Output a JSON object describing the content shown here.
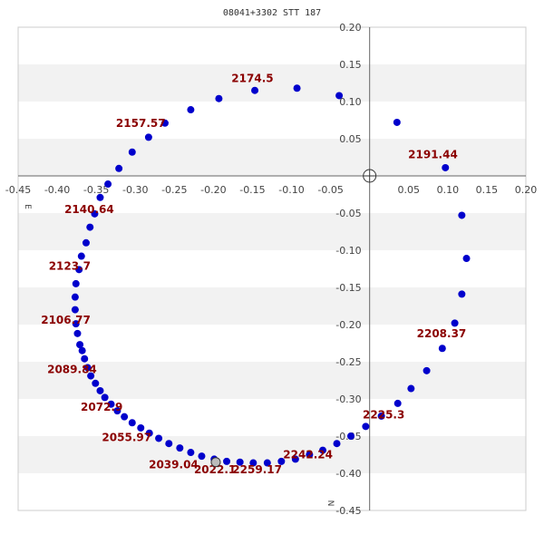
{
  "chart_data": {
    "type": "scatter",
    "title": "08041+3302 STT 187",
    "xlabel": "E",
    "ylabel": "N",
    "xlim": [
      -0.45,
      0.2
    ],
    "ylim": [
      -0.45,
      0.2
    ],
    "x_ticks": [
      "-0.45",
      "-0.40",
      "-0.35",
      "-0.30",
      "-0.25",
      "-0.20",
      "-0.15",
      "-0.10",
      "-0.05",
      "0.05",
      "0.10",
      "0.15",
      "0.20"
    ],
    "y_ticks": [
      "0.20",
      "0.15",
      "0.10",
      "0.05",
      "-0.05",
      "-0.10",
      "-0.15",
      "-0.20",
      "-0.25",
      "-0.30",
      "-0.35",
      "-0.40",
      "-0.45"
    ],
    "grid": "horizontal bands",
    "primary": {
      "x": 0.0,
      "y": 0.0
    },
    "current_epoch_point": {
      "x": -0.197,
      "y": -0.385
    },
    "series": [
      {
        "color": "#0000cc",
        "points": [
          [
            0.097,
            0.011
          ],
          [
            0.118,
            -0.053
          ],
          [
            0.124,
            -0.111
          ],
          [
            0.118,
            -0.159
          ],
          [
            0.109,
            -0.198
          ],
          [
            0.093,
            -0.232
          ],
          [
            0.073,
            -0.262
          ],
          [
            0.053,
            -0.286
          ],
          [
            0.036,
            -0.306
          ],
          [
            0.015,
            -0.323
          ],
          [
            -0.005,
            -0.337
          ],
          [
            -0.024,
            -0.35
          ],
          [
            -0.042,
            -0.36
          ],
          [
            -0.06,
            -0.369
          ],
          [
            -0.077,
            -0.375
          ],
          [
            -0.095,
            -0.381
          ],
          [
            -0.113,
            -0.384
          ],
          [
            -0.131,
            -0.386
          ],
          [
            -0.149,
            -0.386
          ],
          [
            -0.166,
            -0.385
          ],
          [
            -0.183,
            -0.384
          ],
          [
            -0.199,
            -0.381
          ],
          [
            -0.215,
            -0.377
          ],
          [
            -0.229,
            -0.372
          ],
          [
            -0.243,
            -0.366
          ],
          [
            -0.257,
            -0.36
          ],
          [
            -0.27,
            -0.353
          ],
          [
            -0.282,
            -0.346
          ],
          [
            -0.293,
            -0.339
          ],
          [
            -0.304,
            -0.332
          ],
          [
            -0.314,
            -0.324
          ],
          [
            -0.323,
            -0.316
          ],
          [
            -0.331,
            -0.307
          ],
          [
            -0.339,
            -0.298
          ],
          [
            -0.345,
            -0.289
          ],
          [
            -0.351,
            -0.279
          ],
          [
            -0.357,
            -0.269
          ],
          [
            -0.361,
            -0.258
          ],
          [
            -0.365,
            -0.246
          ],
          [
            -0.368,
            -0.235
          ],
          [
            -0.371,
            -0.227
          ],
          [
            -0.374,
            -0.212
          ],
          [
            -0.376,
            -0.199
          ],
          [
            -0.377,
            -0.18
          ],
          [
            -0.377,
            -0.163
          ],
          [
            -0.376,
            -0.145
          ],
          [
            -0.372,
            -0.126
          ],
          [
            -0.369,
            -0.108
          ],
          [
            -0.363,
            -0.09
          ],
          [
            -0.358,
            -0.069
          ],
          [
            -0.352,
            -0.051
          ],
          [
            -0.345,
            -0.029
          ],
          [
            -0.335,
            -0.011
          ],
          [
            -0.321,
            0.01
          ],
          [
            -0.304,
            0.032
          ],
          [
            -0.283,
            0.052
          ],
          [
            -0.262,
            0.071
          ],
          [
            -0.229,
            0.089
          ],
          [
            -0.193,
            0.104
          ],
          [
            -0.147,
            0.115
          ],
          [
            -0.093,
            0.118
          ],
          [
            -0.039,
            0.108
          ],
          [
            0.035,
            0.072
          ]
        ]
      }
    ],
    "annotations": [
      {
        "text": "2174.5",
        "x": -0.15,
        "y": 0.126
      },
      {
        "text": "2157.57",
        "x": -0.293,
        "y": 0.066
      },
      {
        "text": "2191.44",
        "x": 0.081,
        "y": 0.024
      },
      {
        "text": "2140.64",
        "x": -0.359,
        "y": -0.05
      },
      {
        "text": "2123.7",
        "x": -0.384,
        "y": -0.126
      },
      {
        "text": "2106.77",
        "x": -0.389,
        "y": -0.199
      },
      {
        "text": "2208.37",
        "x": 0.092,
        "y": -0.217
      },
      {
        "text": "2089.84",
        "x": -0.381,
        "y": -0.265
      },
      {
        "text": "2072.9",
        "x": -0.343,
        "y": -0.316
      },
      {
        "text": "2225.3",
        "x": 0.018,
        "y": -0.326
      },
      {
        "text": "2055.97",
        "x": -0.311,
        "y": -0.357
      },
      {
        "text": "2242.24",
        "x": -0.079,
        "y": -0.38
      },
      {
        "text": "2039.04",
        "x": -0.251,
        "y": -0.393
      },
      {
        "text": "2022.1",
        "x": -0.198,
        "y": -0.4
      },
      {
        "text": "2259.17",
        "x": -0.144,
        "y": -0.4
      }
    ]
  }
}
